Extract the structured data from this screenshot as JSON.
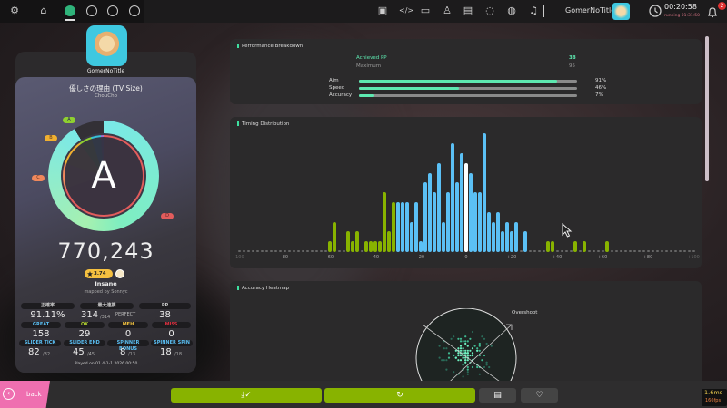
{
  "topbar": {
    "user": "GomerNoTitle",
    "clock": "00:20:58",
    "running": "running 01:31:50",
    "notification_count": "2",
    "left_icons": [
      "gear-icon",
      "home-icon",
      "ruleset-osu-icon",
      "ruleset-taiko-icon",
      "ruleset-catch-icon",
      "ruleset-mania-icon"
    ],
    "right_icons": [
      "cast-icon",
      "code-icon",
      "book-icon",
      "ranking-icon",
      "beatmap-listing-icon",
      "chat-icon",
      "globe-icon",
      "music-icon"
    ]
  },
  "player": {
    "name": "GomerNoTitle"
  },
  "beatmap": {
    "title": "優しさの理由 (TV Size)",
    "artist": "ChouCho",
    "difficulty": "Insane",
    "star_rating": "3.74",
    "mapper": "mapped by Sonnyc"
  },
  "result": {
    "grade": "A",
    "score": "770,243",
    "accuracy_fraction": 0.9111,
    "grade_labels": {
      "a": "A",
      "b": "B",
      "c": "C",
      "d": "D"
    },
    "colors": {
      "ring": "#7ae8e8",
      "d": "#e25c5c",
      "c": "#f0885c",
      "b": "#f0b030",
      "a": "#8fd030",
      "s": "#38c0d8"
    }
  },
  "stats": {
    "accuracy_label": "正確率",
    "accuracy": "91.11%",
    "combo_label": "最大連携",
    "combo": "314",
    "combo_max": "/314",
    "perfect": "PERFECT",
    "pp_label": "PP",
    "pp": "38",
    "great_label": "GREAT",
    "great": "158",
    "ok_label": "OK",
    "ok": "29",
    "meh_label": "MEH",
    "meh": "0",
    "miss_label": "MISS",
    "miss": "0",
    "slider_tick_label": "SLIDER TICK",
    "slider_tick": "82",
    "slider_tick_max": "/82",
    "slider_end_label": "SLIDER END",
    "slider_end": "45",
    "slider_end_max": "/45",
    "spinner_bonus_label": "SPINNER BONUS",
    "spinner_bonus": "8",
    "spinner_bonus_max": "/13",
    "spinner_spin_label": "SPINNER SPIN",
    "spinner_spin": "18",
    "spinner_spin_max": "/18",
    "played_on": "Played on 01 4-1-1 2026 00:50"
  },
  "performance": {
    "title": "Performance Breakdown",
    "achieved_label": "Achieved PP",
    "achieved": "38",
    "maximum_label": "Maximum",
    "maximum": "95",
    "rows": [
      {
        "label": "Aim",
        "value": "91%",
        "fraction": 0.91
      },
      {
        "label": "Speed",
        "value": "46%",
        "fraction": 0.46
      },
      {
        "label": "Accuracy",
        "value": "7%",
        "fraction": 0.07
      }
    ]
  },
  "timing": {
    "title": "Timing Distribution",
    "ticks": [
      "-100",
      "-80",
      "-60",
      "-40",
      "-20",
      "0",
      "+20",
      "+40",
      "+60",
      "+80",
      "+100"
    ],
    "range_ms": [
      -100,
      100
    ],
    "great_window_ms": 31,
    "colors": {
      "great": "#5bc0f5",
      "ok": "#88b300",
      "zero": "#ffffff",
      "empty": "#666666"
    },
    "bins": [
      [
        -60,
        1
      ],
      [
        -58,
        3
      ],
      [
        -52,
        2
      ],
      [
        -50,
        1
      ],
      [
        -48,
        2
      ],
      [
        -44,
        1
      ],
      [
        -42,
        1
      ],
      [
        -40,
        1
      ],
      [
        -38,
        1
      ],
      [
        -36,
        6
      ],
      [
        -34,
        2
      ],
      [
        -32,
        5
      ],
      [
        -30,
        5
      ],
      [
        -28,
        5
      ],
      [
        -26,
        5
      ],
      [
        -24,
        3
      ],
      [
        -22,
        5
      ],
      [
        -20,
        1
      ],
      [
        -18,
        7
      ],
      [
        -16,
        8
      ],
      [
        -14,
        6
      ],
      [
        -12,
        9
      ],
      [
        -10,
        3
      ],
      [
        -8,
        6
      ],
      [
        -6,
        11
      ],
      [
        -4,
        7
      ],
      [
        -2,
        10
      ],
      [
        0,
        9
      ],
      [
        2,
        8
      ],
      [
        4,
        6
      ],
      [
        6,
        6
      ],
      [
        8,
        12
      ],
      [
        10,
        4
      ],
      [
        12,
        3
      ],
      [
        14,
        4
      ],
      [
        16,
        2
      ],
      [
        18,
        3
      ],
      [
        20,
        2
      ],
      [
        22,
        3
      ],
      [
        26,
        2
      ],
      [
        36,
        1
      ],
      [
        38,
        1
      ],
      [
        48,
        1
      ],
      [
        52,
        1
      ],
      [
        62,
        1
      ]
    ]
  },
  "heatmap": {
    "title": "Accuracy Heatmap",
    "overshoot_label": "Overshoot"
  },
  "bottombar": {
    "back_label": "back",
    "fps_ms": "1.6ms",
    "fps": "166fps"
  }
}
